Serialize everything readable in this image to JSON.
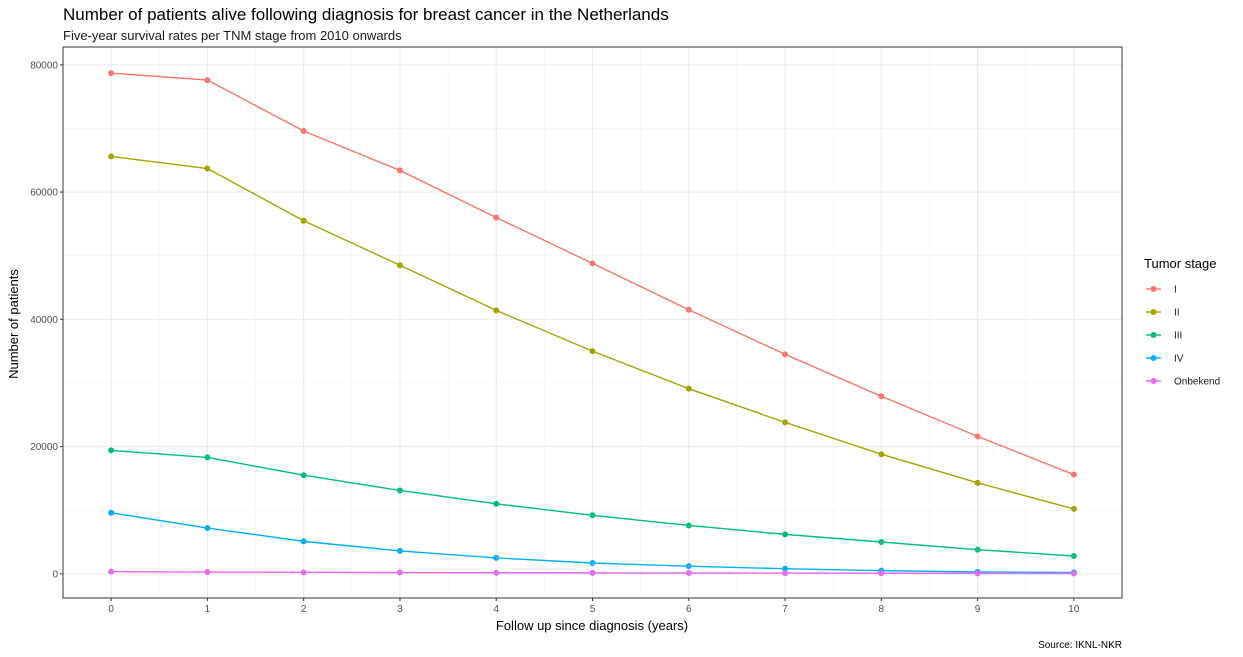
{
  "chart_data": {
    "type": "line",
    "title": "Number of patients alive following diagnosis for breast cancer in the Netherlands",
    "subtitle": "Five-year survival rates per TNM stage from 2010 onwards",
    "xlabel": "Follow up since diagnosis (years)",
    "ylabel": "Number of patients",
    "caption": "Source: IKNL-NKR",
    "x": [
      0,
      1,
      2,
      3,
      4,
      5,
      6,
      7,
      8,
      9,
      10
    ],
    "x_ticks": [
      "0",
      "1",
      "2",
      "3",
      "4",
      "5",
      "6",
      "7",
      "8",
      "9",
      "10"
    ],
    "y_ticks": [
      0,
      20000,
      40000,
      60000,
      80000
    ],
    "y_tick_labels": [
      "0",
      "20000",
      "40000",
      "60000",
      "80000"
    ],
    "xlim": [
      -0.5,
      10.5
    ],
    "ylim": [
      -3800,
      82800
    ],
    "grid": true,
    "legend": {
      "title": "Tumor stage",
      "position": "right"
    },
    "series": [
      {
        "name": "I",
        "color": "#F8766D",
        "values": [
          78700,
          77600,
          69600,
          63400,
          56000,
          48800,
          41500,
          34500,
          27900,
          21600,
          15600
        ]
      },
      {
        "name": "II",
        "color": "#A3A500",
        "values": [
          65600,
          63700,
          55500,
          48500,
          41400,
          35000,
          29100,
          23800,
          18800,
          14300,
          10200
        ]
      },
      {
        "name": "III",
        "color": "#00BF7D",
        "values": [
          19400,
          18300,
          15500,
          13100,
          11000,
          9200,
          7600,
          6200,
          5000,
          3800,
          2800
        ]
      },
      {
        "name": "IV",
        "color": "#00B0F6",
        "values": [
          9600,
          7200,
          5100,
          3600,
          2500,
          1700,
          1200,
          800,
          500,
          300,
          200
        ]
      },
      {
        "name": "Onbekend",
        "color": "#E76BF3",
        "values": [
          350,
          280,
          230,
          200,
          170,
          150,
          130,
          110,
          90,
          70,
          50
        ]
      }
    ]
  }
}
